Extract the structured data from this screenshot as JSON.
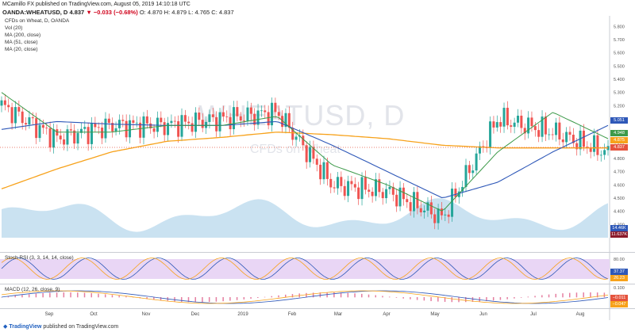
{
  "header": {
    "line1": "MCamillo FX published on TradingView.com, August 05, 2019 14:10:18 UTC",
    "symbol": "OANDA:WHEATUSD, D",
    "price": "4.837",
    "change": "▼ −0.033 (−0.68%)",
    "ohlc": "O: 4.870  H: 4.879  L: 4.765  C: 4.837"
  },
  "legend": {
    "title": "CFDs on Wheat, D, OANDA",
    "vol": "Vol (20)",
    "ma200": "MA (200, close)",
    "ma51": "MA (51, close)",
    "ma20": "MA (20, close)"
  },
  "watermark": {
    "big": "WHEATUSD, D",
    "small": "CFDs on Wheat"
  },
  "price_axis": {
    "ticks": [
      "5.800",
      "5.700",
      "5.600",
      "5.500",
      "5.400",
      "5.300",
      "5.200",
      "5.100",
      "5.000",
      "4.900",
      "4.800",
      "4.700",
      "4.600",
      "4.500",
      "4.400",
      "4.300"
    ],
    "tags": [
      {
        "text": "5.051",
        "color": "#2e58b8"
      },
      {
        "text": "4.948",
        "color": "#3d9a4a"
      },
      {
        "text": "4.875",
        "color": "#f7a21b"
      },
      {
        "text": "4.837",
        "color": "#e5533d"
      },
      {
        "text": "14.46K",
        "color": "#2e58b8"
      },
      {
        "text": "11.637K",
        "color": "#8b1a2b"
      }
    ]
  },
  "stoch": {
    "label": "Stoch RSI (3, 3, 14, 14, close)",
    "ticks": [
      "80.00",
      "20.00"
    ],
    "v1": "37.37",
    "v2": "26.23"
  },
  "macd": {
    "label": "MACD (12, 26, close, 9)",
    "ticks": [
      "0.100"
    ],
    "v1": "−0.011",
    "v2": "−0.047"
  },
  "x_axis": [
    "Sep",
    "Oct",
    "Nov",
    "Dec",
    "2019",
    "Feb",
    "Mar",
    "Apr",
    "May",
    "Jun",
    "Jul",
    "Aug"
  ],
  "footer": {
    "brand": "TradingView",
    "text": "published on TradingView.com"
  },
  "colors": {
    "up": "#26a69a",
    "down": "#ef5350",
    "ma200": "#f7a21b",
    "ma51": "#2e58b8",
    "ma20": "#3d9a4a",
    "volume": "#9ecbe6"
  },
  "chart_data": {
    "type": "line",
    "title": "CFDs on Wheat, D, OANDA",
    "x": [
      "Sep",
      "Oct",
      "Nov",
      "Dec",
      "2019",
      "Feb",
      "Mar",
      "Apr",
      "May",
      "Jun",
      "Jul",
      "Aug"
    ],
    "ylim": [
      4.2,
      5.85
    ],
    "series": [
      {
        "name": "CFDs on Wheat",
        "values": [
          5.2,
          4.95,
          5.05,
          5.05,
          5.1,
          5.15,
          4.6,
          4.55,
          4.35,
          5.1,
          5.0,
          4.84
        ]
      },
      {
        "name": "MA (20, close)",
        "values": [
          5.3,
          5.0,
          5.0,
          5.05,
          5.05,
          5.12,
          4.75,
          4.6,
          4.4,
          4.85,
          5.15,
          4.95
        ]
      },
      {
        "name": "MA (51, close)",
        "values": [
          5.02,
          5.08,
          5.06,
          5.05,
          5.05,
          5.08,
          4.9,
          4.7,
          4.5,
          4.62,
          4.85,
          5.05
        ]
      },
      {
        "name": "MA (200, close)",
        "values": [
          4.57,
          4.72,
          4.85,
          4.93,
          4.96,
          5.0,
          4.98,
          4.95,
          4.9,
          4.88,
          4.88,
          4.88
        ]
      }
    ]
  }
}
